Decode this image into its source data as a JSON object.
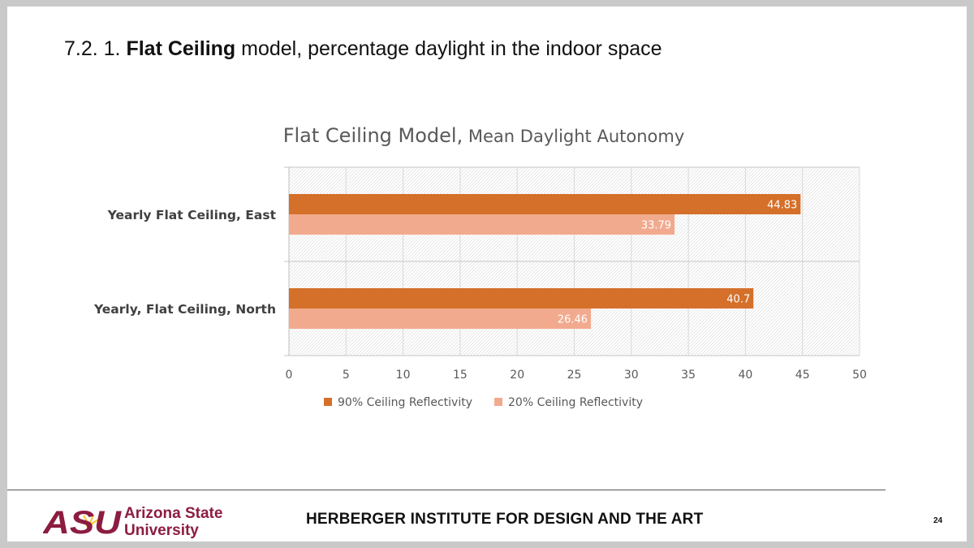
{
  "slide": {
    "title_prefix": "7.2. 1. ",
    "title_bold": "Flat Ceiling",
    "title_rest": " model, percentage daylight in the indoor space"
  },
  "chart_data": {
    "type": "bar",
    "orientation": "horizontal",
    "title_main": "Flat Ceiling Model,",
    "title_sub": " Mean Daylight Autonomy",
    "categories": [
      "Yearly Flat Ceiling, East",
      "Yearly, Flat Ceiling, North"
    ],
    "series": [
      {
        "name": "90% Ceiling Reflectivity",
        "color": "#D4702A",
        "values": [
          44.83,
          40.7
        ]
      },
      {
        "name": "20% Ceiling Reflectivity",
        "color": "#F2AA8E",
        "values": [
          33.79,
          26.46
        ]
      }
    ],
    "xlim": [
      0,
      50
    ],
    "xticks": [
      0,
      5,
      10,
      15,
      20,
      25,
      30,
      35,
      40,
      45,
      50
    ],
    "data_labels": true,
    "legend_position": "bottom",
    "plot_background": "hatched"
  },
  "footer": {
    "logo_text_line1": "Arizona State",
    "logo_text_line2": "University",
    "logo_mark": "ASU",
    "institute": "HERBERGER INSTITUTE FOR DESIGN AND THE ART",
    "page_number": "24"
  },
  "colors": {
    "asu_maroon": "#8C1D40",
    "asu_gold": "#FFC627"
  }
}
